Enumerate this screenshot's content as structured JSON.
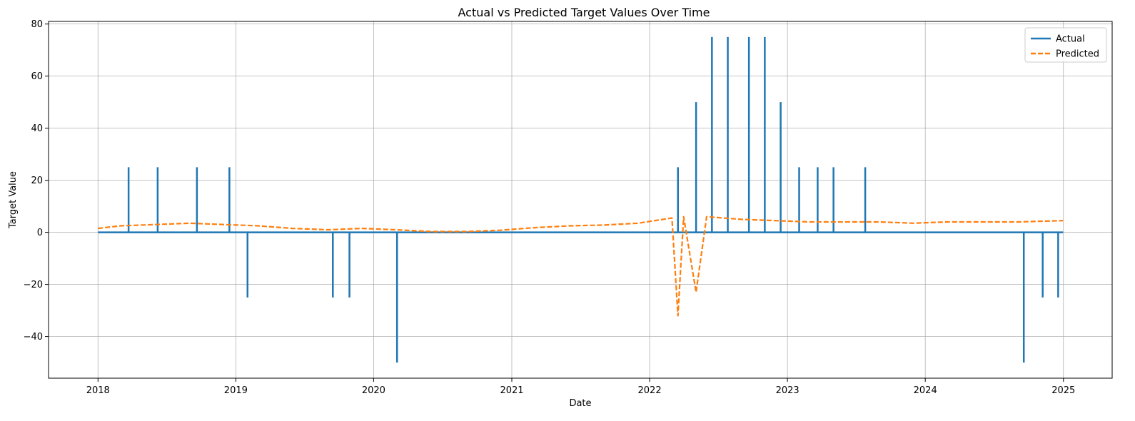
{
  "chart_data": {
    "type": "line",
    "title": "Actual vs Predicted Target Values Over Time",
    "xlabel": "Date",
    "ylabel": "Target Value",
    "xlim": [
      "2017-08-23",
      "2025-05-10"
    ],
    "ylim": [
      -56,
      81
    ],
    "x_ticks": [
      "2018",
      "2019",
      "2020",
      "2021",
      "2022",
      "2023",
      "2024",
      "2025"
    ],
    "y_ticks": [
      -40,
      -20,
      0,
      20,
      40,
      60,
      80
    ],
    "grid": true,
    "legend_position": "top-right",
    "actual_baseline": 0,
    "series": [
      {
        "name": "Actual",
        "color": "#1f77b4",
        "style": "solid",
        "points": [
          {
            "x": "2018-01-01",
            "y": 0
          },
          {
            "x": "2018-03-23",
            "y": 25
          },
          {
            "x": "2018-06-08",
            "y": 25
          },
          {
            "x": "2018-09-20",
            "y": 25
          },
          {
            "x": "2018-12-15",
            "y": 25
          },
          {
            "x": "2019-02-01",
            "y": -25
          },
          {
            "x": "2019-09-15",
            "y": -25
          },
          {
            "x": "2019-10-29",
            "y": -25
          },
          {
            "x": "2020-03-03",
            "y": -50
          },
          {
            "x": "2022-03-17",
            "y": 25
          },
          {
            "x": "2022-05-04",
            "y": 50
          },
          {
            "x": "2022-06-15",
            "y": 75
          },
          {
            "x": "2022-07-27",
            "y": 75
          },
          {
            "x": "2022-09-21",
            "y": 75
          },
          {
            "x": "2022-11-02",
            "y": 75
          },
          {
            "x": "2022-12-14",
            "y": 50
          },
          {
            "x": "2023-02-01",
            "y": 25
          },
          {
            "x": "2023-03-22",
            "y": 25
          },
          {
            "x": "2023-05-03",
            "y": 25
          },
          {
            "x": "2023-07-26",
            "y": 25
          },
          {
            "x": "2024-09-18",
            "y": -50
          },
          {
            "x": "2024-11-07",
            "y": -25
          },
          {
            "x": "2024-12-18",
            "y": -25
          },
          {
            "x": "2024-12-31",
            "y": 0
          }
        ]
      },
      {
        "name": "Predicted",
        "color": "#ff7f0e",
        "style": "dashed",
        "points": [
          {
            "x": "2018-01-01",
            "y": 1.5
          },
          {
            "x": "2018-03-01",
            "y": 2.5
          },
          {
            "x": "2018-06-01",
            "y": 3.0
          },
          {
            "x": "2018-09-01",
            "y": 3.5
          },
          {
            "x": "2018-12-01",
            "y": 3.0
          },
          {
            "x": "2019-03-01",
            "y": 2.5
          },
          {
            "x": "2019-06-01",
            "y": 1.5
          },
          {
            "x": "2019-09-01",
            "y": 1.0
          },
          {
            "x": "2019-12-01",
            "y": 1.5
          },
          {
            "x": "2020-03-01",
            "y": 1.0
          },
          {
            "x": "2020-06-01",
            "y": 0.3
          },
          {
            "x": "2020-09-01",
            "y": 0.3
          },
          {
            "x": "2020-12-01",
            "y": 0.8
          },
          {
            "x": "2021-03-01",
            "y": 1.8
          },
          {
            "x": "2021-06-01",
            "y": 2.5
          },
          {
            "x": "2021-09-01",
            "y": 2.8
          },
          {
            "x": "2021-12-01",
            "y": 3.5
          },
          {
            "x": "2022-03-01",
            "y": 5.5
          },
          {
            "x": "2022-03-17",
            "y": -32
          },
          {
            "x": "2022-04-01",
            "y": 6.0
          },
          {
            "x": "2022-05-04",
            "y": -23
          },
          {
            "x": "2022-06-01",
            "y": 6.0
          },
          {
            "x": "2022-09-01",
            "y": 5.0
          },
          {
            "x": "2022-12-01",
            "y": 4.5
          },
          {
            "x": "2023-03-01",
            "y": 4.0
          },
          {
            "x": "2023-06-01",
            "y": 4.0
          },
          {
            "x": "2023-09-01",
            "y": 4.0
          },
          {
            "x": "2023-12-01",
            "y": 3.5
          },
          {
            "x": "2024-03-01",
            "y": 4.0
          },
          {
            "x": "2024-06-01",
            "y": 4.0
          },
          {
            "x": "2024-09-01",
            "y": 4.0
          },
          {
            "x": "2024-12-31",
            "y": 4.5
          }
        ]
      }
    ]
  }
}
